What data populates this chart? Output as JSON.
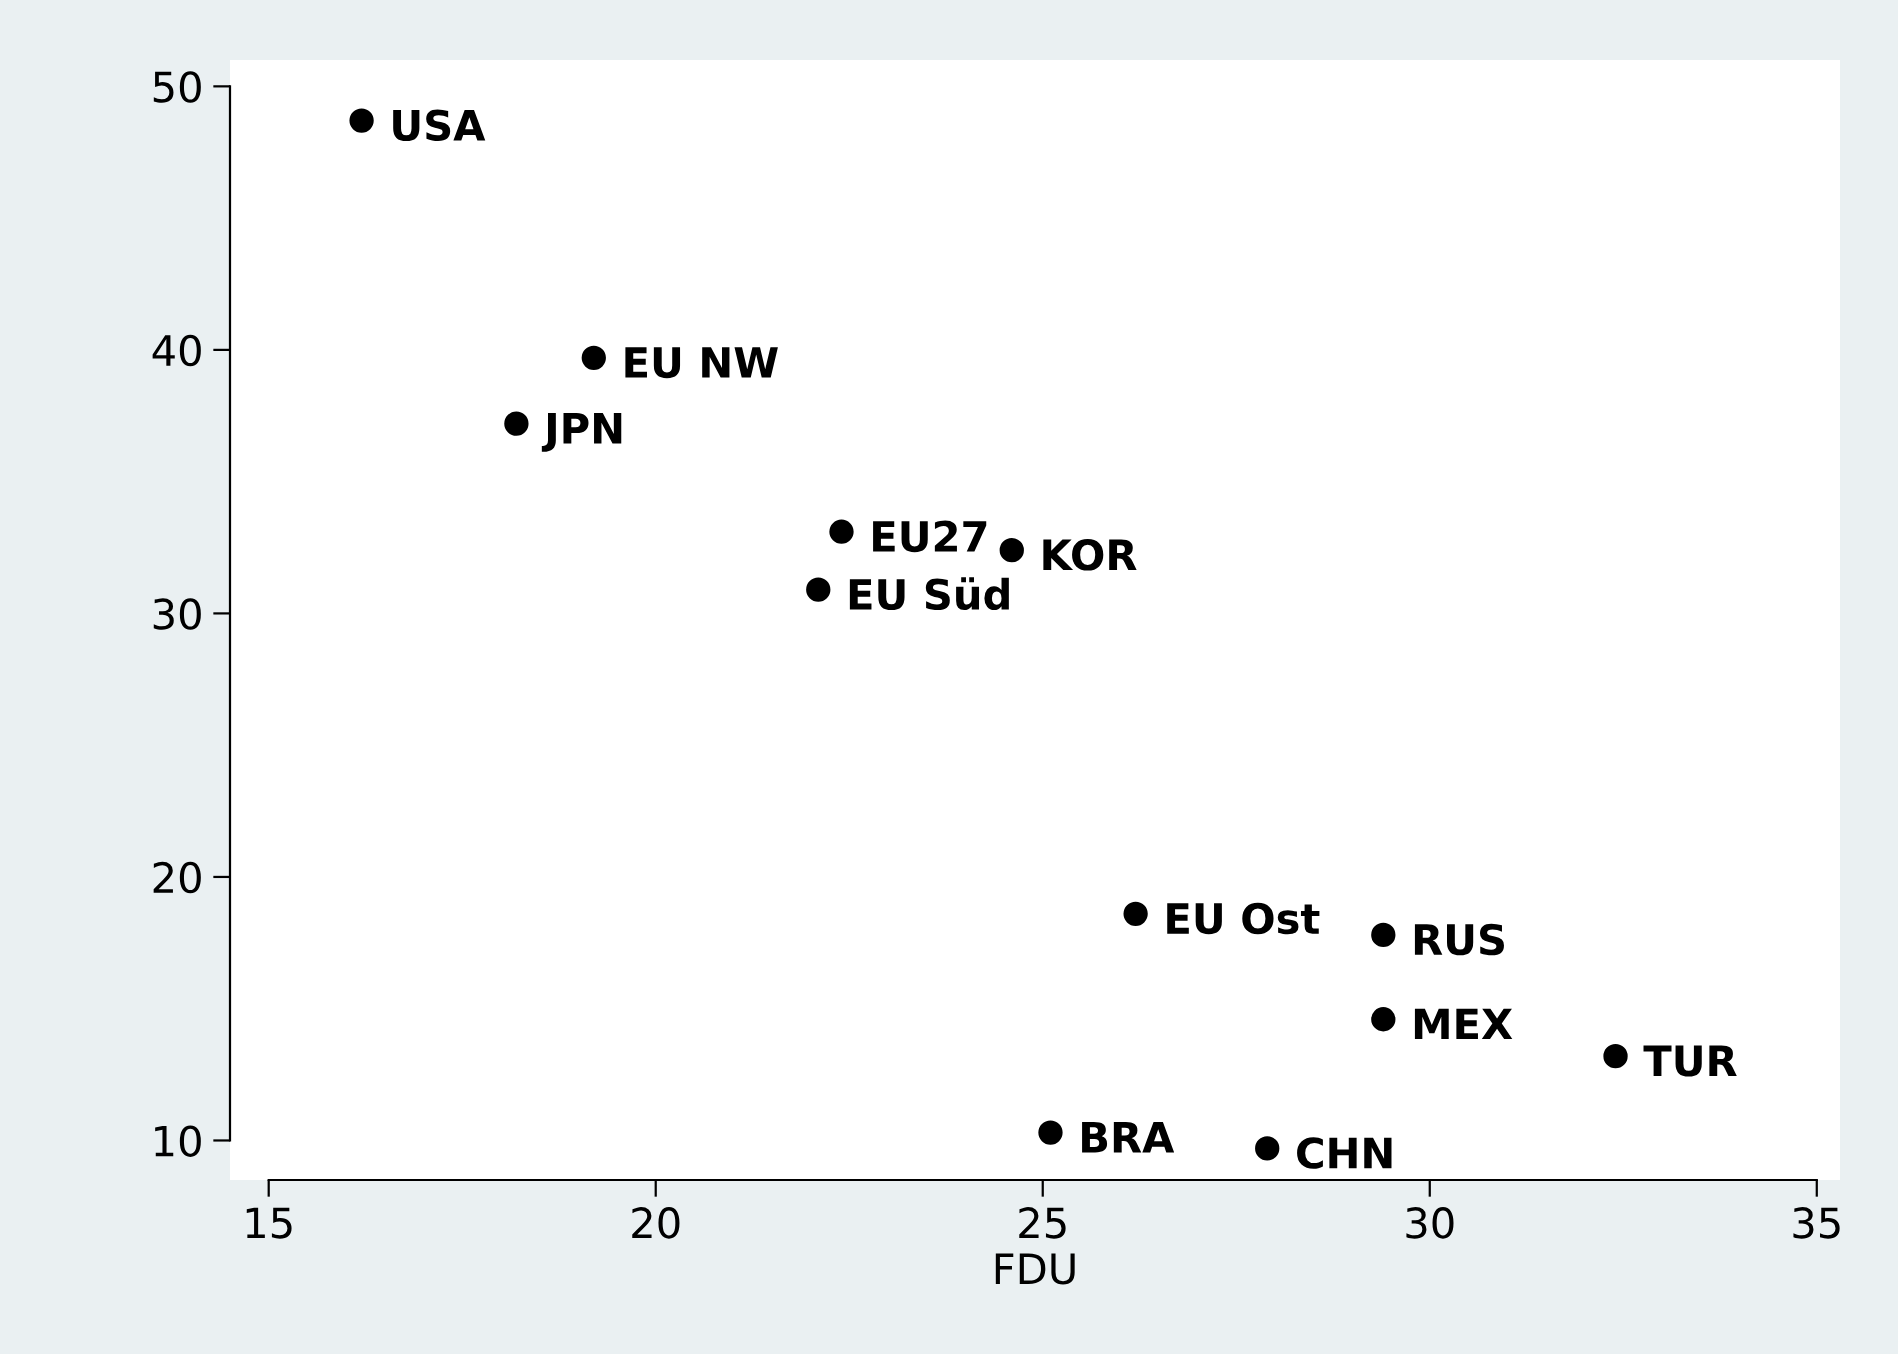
{
  "chart_data": {
    "type": "scatter",
    "xlabel": "FDU",
    "series": [
      {
        "color": "#000000",
        "x": [
          16.2,
          19.2,
          18.2,
          22.4,
          24.6,
          22.1,
          26.2,
          29.4,
          29.4,
          32.4,
          25.1,
          27.9
        ],
        "values": [
          48.7,
          39.7,
          37.2,
          33.1,
          32.4,
          30.9,
          18.6,
          17.8,
          14.6,
          13.2,
          10.3,
          9.7
        ]
      }
    ],
    "annotations": [
      {
        "text": "USA",
        "x": 16.2,
        "y": 48.7
      },
      {
        "text": "EU NW",
        "x": 19.2,
        "y": 39.7
      },
      {
        "text": "JPN",
        "x": 18.2,
        "y": 37.2
      },
      {
        "text": "EU27",
        "x": 22.4,
        "y": 33.1
      },
      {
        "text": "KOR",
        "x": 24.6,
        "y": 32.4
      },
      {
        "text": "EU Süd",
        "x": 22.1,
        "y": 30.9
      },
      {
        "text": "EU Ost",
        "x": 26.2,
        "y": 18.6
      },
      {
        "text": "RUS",
        "x": 29.4,
        "y": 17.8
      },
      {
        "text": "MEX",
        "x": 29.4,
        "y": 14.6
      },
      {
        "text": "TUR",
        "x": 32.4,
        "y": 13.2
      },
      {
        "text": "BRA",
        "x": 25.1,
        "y": 10.3
      },
      {
        "text": "CHN",
        "x": 27.9,
        "y": 9.7
      }
    ],
    "xlim": [
      14.5,
      35.3
    ],
    "ylim": [
      8.5,
      51
    ],
    "xticks": [
      15,
      20,
      25,
      30,
      35
    ],
    "yticks": [
      10,
      20,
      30,
      40,
      50
    ],
    "grid": false,
    "legend": false,
    "marker": "circle"
  }
}
